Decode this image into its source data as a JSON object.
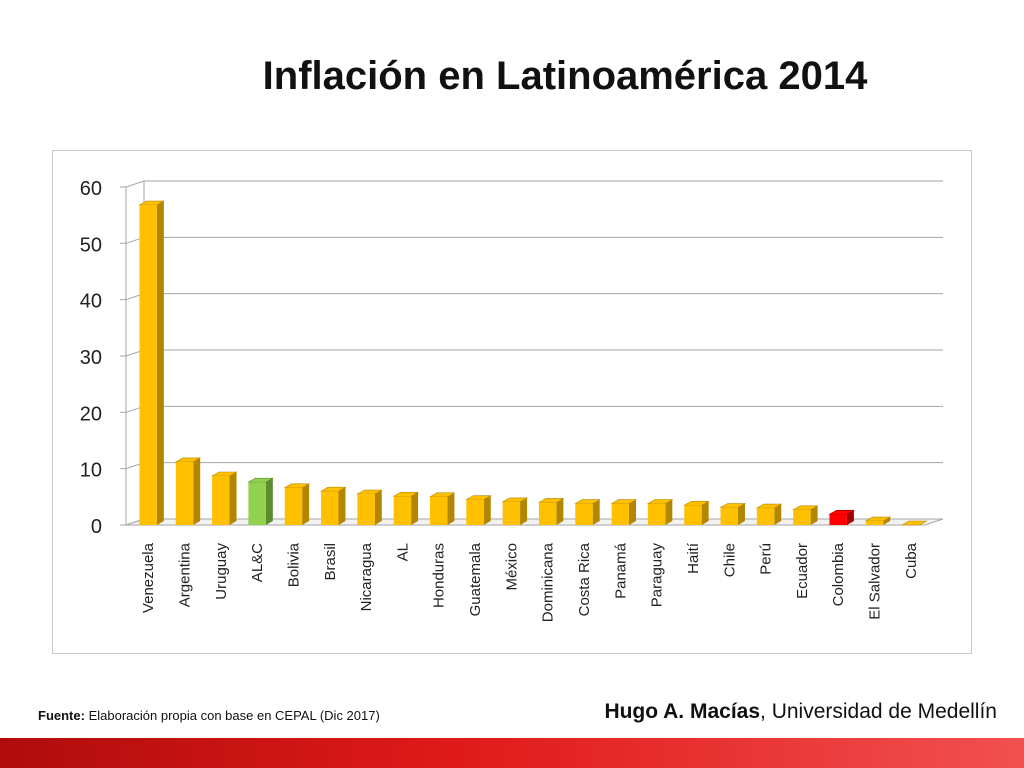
{
  "slide": {
    "source_label": "Fuente:",
    "source_text": "Elaboración propia con base en CEPAL (Dic 2017)",
    "author_name": "Hugo A. Macías",
    "author_affiliation": ", Universidad de Medellín"
  },
  "colors": {
    "default_bar": "#ffc000",
    "default_bar_side": "#b38600",
    "highlight_alc": "#92d050",
    "highlight_alc_side": "#5e8a30",
    "highlight_colombia": "#ff0000",
    "highlight_colombia_side": "#a00000",
    "gridline": "#a6a6a6",
    "footer_band": "#d71920"
  },
  "chart_data": {
    "type": "bar",
    "title": "Inflación en Latinoamérica 2014",
    "xlabel": "",
    "ylabel": "",
    "ylim": [
      0,
      60
    ],
    "yticks": [
      0,
      10,
      20,
      30,
      40,
      50,
      60
    ],
    "grid": true,
    "legend": "none",
    "style": "3d-columns",
    "categories": [
      "Venezuela",
      "Argentina",
      "Uruguay",
      "AL&C",
      "Bolivia",
      "Brasil",
      "Nicaragua",
      "AL",
      "Honduras",
      "Guatemala",
      "México",
      "Dominicana",
      "Costa Rica",
      "Panamá",
      "Paraguay",
      "Haití",
      "Chile",
      "Perú",
      "Ecuador",
      "Colombia",
      "El Salvador",
      "Cuba"
    ],
    "values": [
      56.8,
      11.2,
      8.7,
      7.6,
      6.6,
      6.0,
      5.5,
      5.1,
      5.0,
      4.5,
      4.1,
      4.0,
      3.8,
      3.8,
      3.8,
      3.5,
      3.1,
      3.0,
      2.7,
      1.9,
      0.7,
      0.0
    ],
    "highlights": {
      "AL&C": "highlight_alc",
      "Colombia": "highlight_colombia"
    }
  }
}
